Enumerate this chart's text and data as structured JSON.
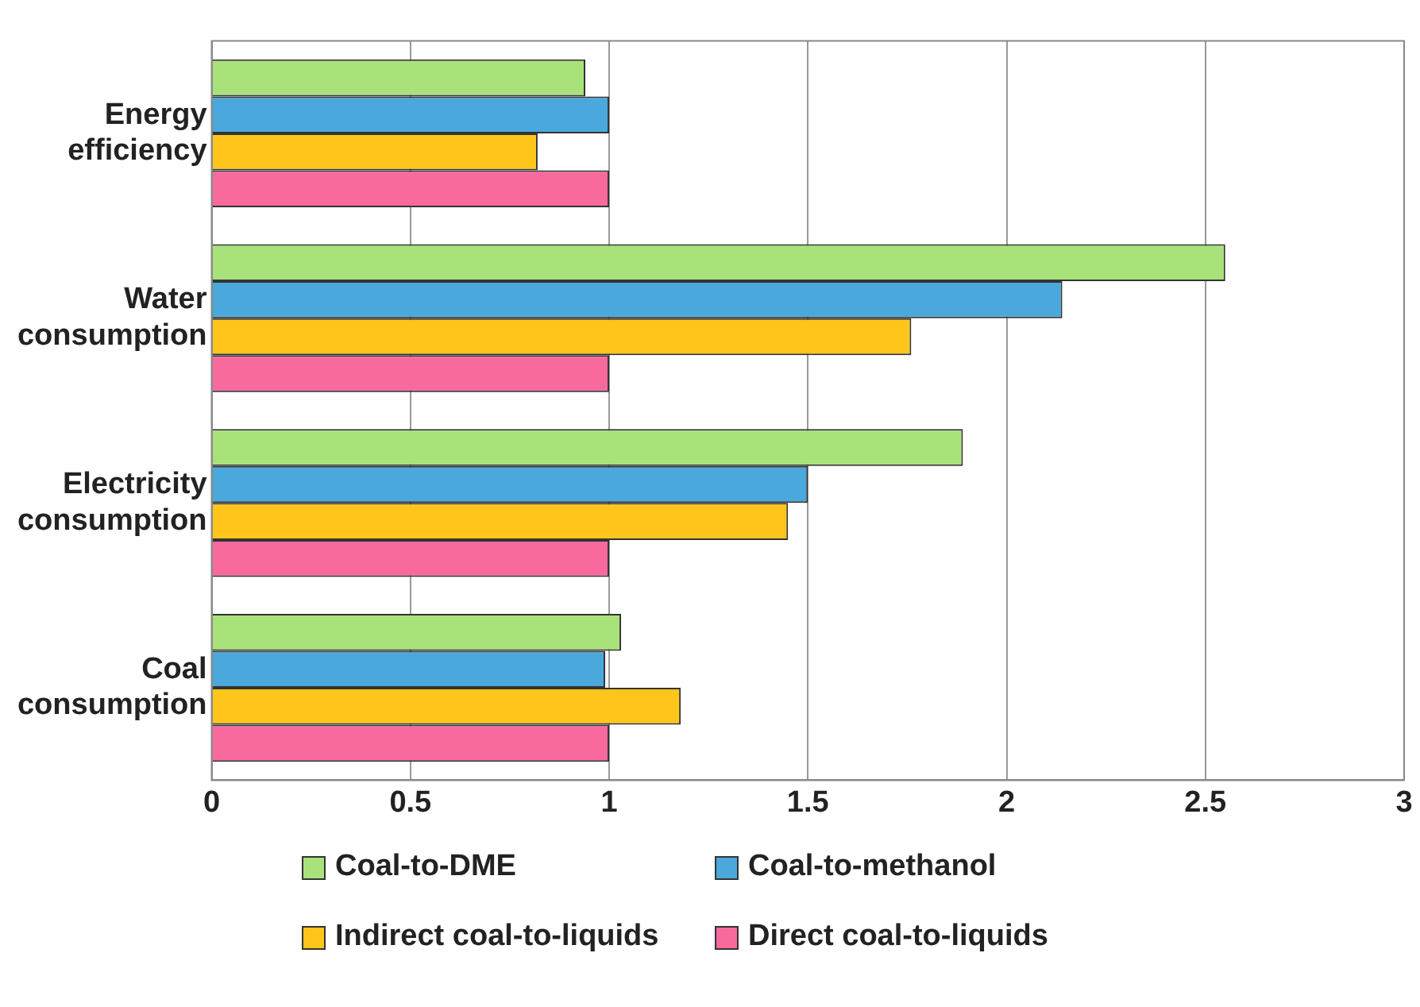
{
  "chart_data": {
    "type": "bar",
    "orientation": "horizontal",
    "categories": [
      "Energy efficiency",
      "Water consumption",
      "Electricity consumption",
      "Coal consumption"
    ],
    "series": [
      {
        "name": "Coal-to-DME",
        "color": "#a9e27a",
        "values": [
          0.94,
          2.55,
          1.89,
          1.03
        ]
      },
      {
        "name": "Coal-to-methanol",
        "color": "#4aa8dc",
        "values": [
          1.0,
          2.14,
          1.5,
          0.99
        ]
      },
      {
        "name": "Indirect coal-to-liquids",
        "color": "#ffc51a",
        "values": [
          0.82,
          1.76,
          1.45,
          1.18
        ]
      },
      {
        "name": "Direct coal-to-liquids",
        "color": "#f86a9e",
        "values": [
          1.0,
          1.0,
          1.0,
          1.0
        ]
      }
    ],
    "xlim": [
      0,
      3
    ],
    "xticks": [
      0,
      0.5,
      1,
      1.5,
      2,
      2.5,
      3
    ],
    "grid": "x",
    "legend": "bottom"
  }
}
